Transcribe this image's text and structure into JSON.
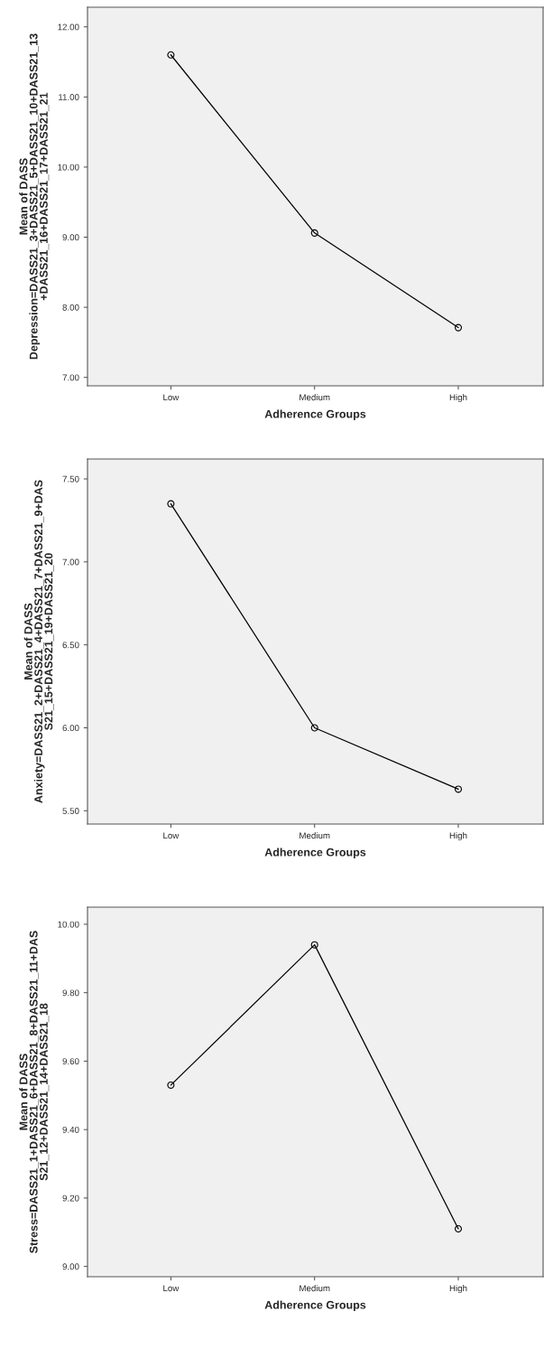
{
  "chart_data": [
    {
      "type": "line",
      "categories": [
        "Low",
        "Medium",
        "High"
      ],
      "series": [
        {
          "color": "#000000",
          "values": [
            11.6,
            9.06,
            7.71
          ]
        }
      ],
      "xlabel": "Adherence Groups",
      "ylabel": "Mean of DASS\nDepression=DASS21_3+DASS21_5+DASS21_10+DASS21_13\n+DASS21_16+DASS21_17+DASS21_21",
      "ylim": [
        6.88,
        12.28
      ],
      "yticks": [
        {
          "value": 7,
          "label": "7.00"
        },
        {
          "value": 8,
          "label": "8.00"
        },
        {
          "value": 9,
          "label": "9.00"
        },
        {
          "value": 10,
          "label": "10.00"
        },
        {
          "value": 11,
          "label": "11.00"
        },
        {
          "value": 12,
          "label": "12.00"
        }
      ],
      "marker": "circle",
      "line_style": "solid",
      "grid": false,
      "legend": false
    },
    {
      "type": "line",
      "categories": [
        "Low",
        "Medium",
        "High"
      ],
      "series": [
        {
          "color": "#000000",
          "values": [
            7.35,
            6.0,
            5.63
          ]
        }
      ],
      "xlabel": "Adherence Groups",
      "ylabel": "Mean of DASS\nAnxiety=DASS21_2+DASS21_4+DASS21_7+DASS21_9+DAS\nS21_15+DASS21_19+DASS21_20",
      "ylim": [
        5.42,
        7.62
      ],
      "yticks": [
        {
          "value": 5.5,
          "label": "5.50"
        },
        {
          "value": 6,
          "label": "6.00"
        },
        {
          "value": 6.5,
          "label": "6.50"
        },
        {
          "value": 7,
          "label": "7.00"
        },
        {
          "value": 7.5,
          "label": "7.50"
        }
      ],
      "marker": "circle",
      "line_style": "solid",
      "grid": false,
      "legend": false
    },
    {
      "type": "line",
      "categories": [
        "Low",
        "Medium",
        "High"
      ],
      "series": [
        {
          "color": "#000000",
          "values": [
            9.53,
            9.94,
            9.11
          ]
        }
      ],
      "xlabel": "Adherence Groups",
      "ylabel": "Mean of DASS\nStress=DASS21_1+DASS21_6+DASS21_8+DASS21_11+DAS\nS21_12+DASS21_14+DASS21_18",
      "ylim": [
        8.97,
        10.05
      ],
      "yticks": [
        {
          "value": 9,
          "label": "9.00"
        },
        {
          "value": 9.2,
          "label": "9.20"
        },
        {
          "value": 9.4,
          "label": "9.40"
        },
        {
          "value": 9.6,
          "label": "9.60"
        },
        {
          "value": 9.8,
          "label": "9.80"
        },
        {
          "value": 10,
          "label": "10.00"
        }
      ],
      "marker": "circle",
      "line_style": "solid",
      "grid": false,
      "legend": false
    }
  ]
}
